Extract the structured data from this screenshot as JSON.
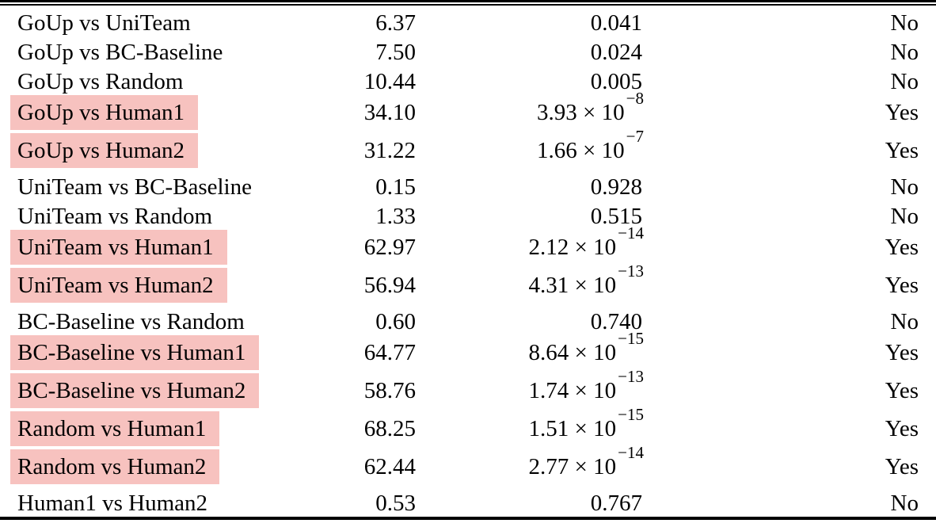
{
  "table": {
    "highlight_color": "#f7c2bf",
    "rows": [
      {
        "comparison": "GoUp vs UniTeam",
        "statistic": "6.37",
        "p_base": "0.041",
        "p_exp": "",
        "significant": "No",
        "highlighted": false
      },
      {
        "comparison": "GoUp vs BC-Baseline",
        "statistic": "7.50",
        "p_base": "0.024",
        "p_exp": "",
        "significant": "No",
        "highlighted": false
      },
      {
        "comparison": "GoUp vs Random",
        "statistic": "10.44",
        "p_base": "0.005",
        "p_exp": "",
        "significant": "No",
        "highlighted": false
      },
      {
        "comparison": "GoUp vs Human1",
        "statistic": "34.10",
        "p_base": "3.93 × 10",
        "p_exp": "−8",
        "significant": "Yes",
        "highlighted": true
      },
      {
        "comparison": "GoUp vs Human2",
        "statistic": "31.22",
        "p_base": "1.66 × 10",
        "p_exp": "−7",
        "significant": "Yes",
        "highlighted": true
      },
      {
        "comparison": "UniTeam vs BC-Baseline",
        "statistic": "0.15",
        "p_base": "0.928",
        "p_exp": "",
        "significant": "No",
        "highlighted": false
      },
      {
        "comparison": "UniTeam vs Random",
        "statistic": "1.33",
        "p_base": "0.515",
        "p_exp": "",
        "significant": "No",
        "highlighted": false
      },
      {
        "comparison": "UniTeam vs Human1",
        "statistic": "62.97",
        "p_base": "2.12 × 10",
        "p_exp": "−14",
        "significant": "Yes",
        "highlighted": true
      },
      {
        "comparison": "UniTeam vs Human2",
        "statistic": "56.94",
        "p_base": "4.31 × 10",
        "p_exp": "−13",
        "significant": "Yes",
        "highlighted": true
      },
      {
        "comparison": "BC-Baseline vs Random",
        "statistic": "0.60",
        "p_base": "0.740",
        "p_exp": "",
        "significant": "No",
        "highlighted": false
      },
      {
        "comparison": "BC-Baseline vs Human1",
        "statistic": "64.77",
        "p_base": "8.64 × 10",
        "p_exp": "−15",
        "significant": "Yes",
        "highlighted": true
      },
      {
        "comparison": "BC-Baseline vs Human2",
        "statistic": "58.76",
        "p_base": "1.74 × 10",
        "p_exp": "−13",
        "significant": "Yes",
        "highlighted": true
      },
      {
        "comparison": "Random vs Human1",
        "statistic": "68.25",
        "p_base": "1.51 × 10",
        "p_exp": "−15",
        "significant": "Yes",
        "highlighted": true
      },
      {
        "comparison": "Random vs Human2",
        "statistic": "62.44",
        "p_base": "2.77 × 10",
        "p_exp": "−14",
        "significant": "Yes",
        "highlighted": true
      },
      {
        "comparison": "Human1 vs Human2",
        "statistic": "0.53",
        "p_base": "0.767",
        "p_exp": "",
        "significant": "No",
        "highlighted": false
      }
    ]
  }
}
